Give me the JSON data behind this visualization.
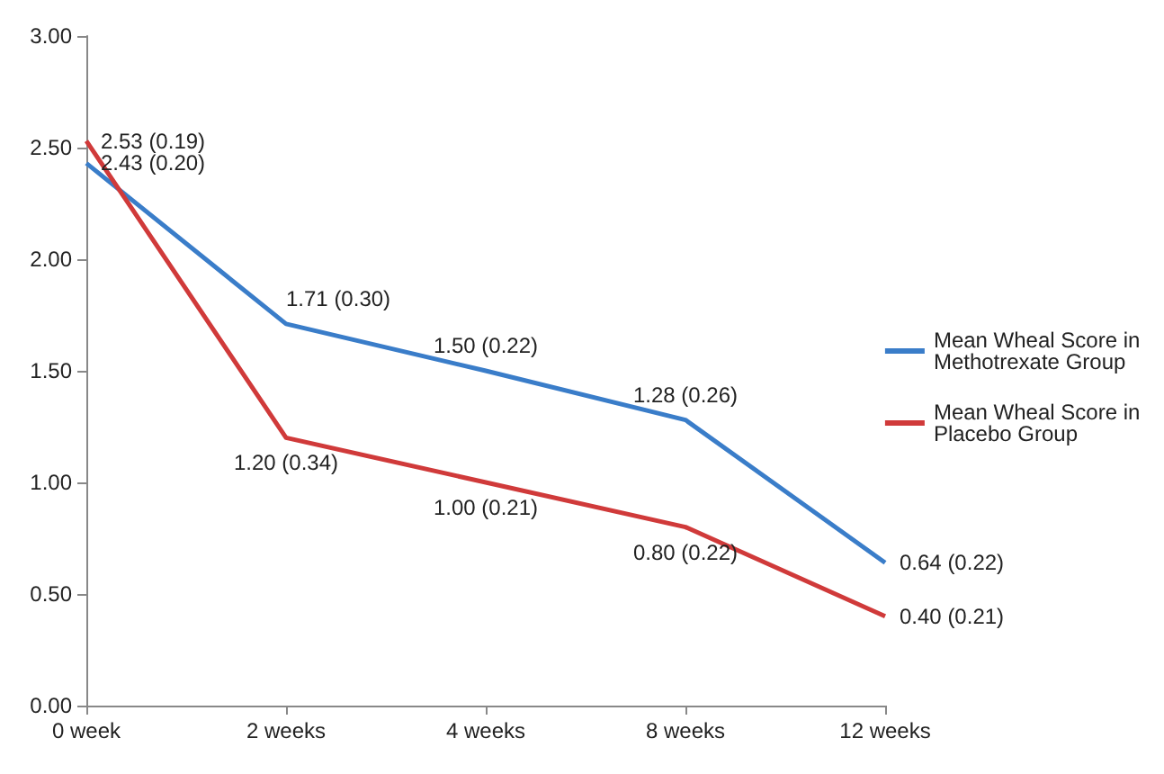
{
  "chart_data": {
    "type": "line",
    "categories": [
      "0 week",
      "2 weeks",
      "4 weeks",
      "8 weeks",
      "12 weeks"
    ],
    "series": [
      {
        "name": "Mean Wheal Score in Methotrexate Group",
        "color": "#3a7dc9",
        "values": [
          2.43,
          1.71,
          1.5,
          1.28,
          0.64
        ],
        "value_labels": [
          "2.43 (0.20)",
          "1.71 (0.30)",
          "1.50 (0.22)",
          "1.28 (0.26)",
          "0.64 (0.22)"
        ]
      },
      {
        "name": "Mean Wheal Score in Placebo Group",
        "color": "#d03a3a",
        "values": [
          2.53,
          1.2,
          1.0,
          0.8,
          0.4
        ],
        "value_labels": [
          "2.53 (0.19)",
          "1.20 (0.34)",
          "1.00 (0.21)",
          "0.80 (0.22)",
          "0.40 (0.21)"
        ]
      }
    ],
    "ylim": [
      0,
      3
    ],
    "yticks": [
      {
        "value": 0,
        "label": "0.00"
      },
      {
        "value": 0.5,
        "label": "0.50"
      },
      {
        "value": 1,
        "label": "1.00"
      },
      {
        "value": 1.5,
        "label": "1.50"
      },
      {
        "value": 2,
        "label": "2.00"
      },
      {
        "value": 2.5,
        "label": "2.50"
      },
      {
        "value": 3,
        "label": "3.00"
      }
    ],
    "legend": "right",
    "grid": false,
    "marker": "none",
    "line_style": "solid"
  }
}
